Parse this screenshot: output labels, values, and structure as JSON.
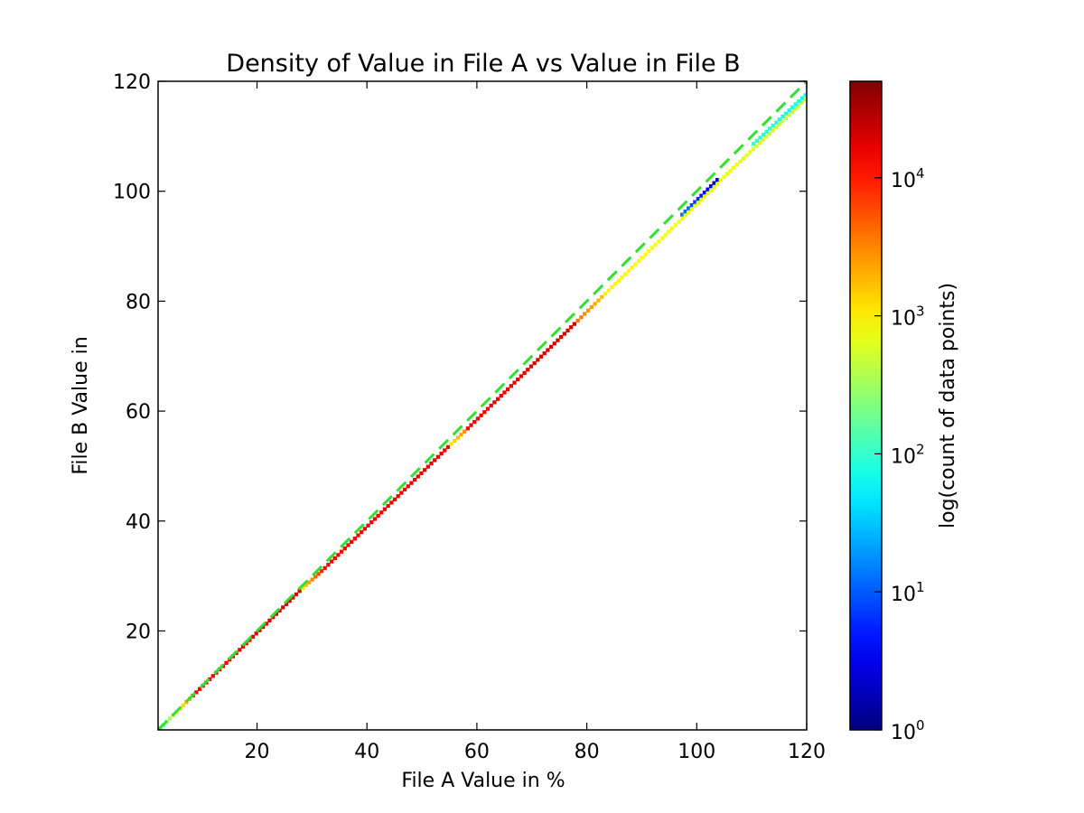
{
  "chart_data": {
    "type": "heatmap",
    "title": "Density of Value in File A vs Value in File B",
    "xlabel": "File A Value in %",
    "ylabel": "File B Value in",
    "xlim": [
      2,
      120
    ],
    "ylim": [
      2,
      120
    ],
    "xticks": [
      20,
      40,
      60,
      80,
      100,
      120
    ],
    "yticks": [
      20,
      40,
      60,
      80,
      100,
      120
    ],
    "colorbar": {
      "label": "log(count of data points)",
      "scale": "log",
      "range": [
        1,
        50000
      ],
      "ticks": [
        {
          "value": 1,
          "base": "10",
          "exp": "0"
        },
        {
          "value": 10,
          "base": "10",
          "exp": "1"
        },
        {
          "value": 100,
          "base": "10",
          "exp": "2"
        },
        {
          "value": 1000,
          "base": "10",
          "exp": "3"
        },
        {
          "value": 10000,
          "base": "10",
          "exp": "4"
        }
      ],
      "colormap": "jet"
    },
    "reference_line": {
      "style": "dashed",
      "color": "#33dd33",
      "points": [
        [
          2,
          2
        ],
        [
          120,
          120
        ]
      ]
    },
    "density_band": {
      "bin_width": 0.6,
      "segments": [
        {
          "x": [
            2,
            8
          ],
          "offset": [
            0,
            0
          ],
          "log_count": [
            2.0,
            3.5
          ]
        },
        {
          "x": [
            8,
            28
          ],
          "offset": [
            0,
            -0.4
          ],
          "log_count": [
            4.1,
            4.3
          ]
        },
        {
          "x": [
            28,
            32
          ],
          "offset": [
            -0.4,
            -0.8
          ],
          "log_count": [
            3.0,
            4.0
          ]
        },
        {
          "x": [
            32,
            55
          ],
          "offset": [
            -0.8,
            -1.2
          ],
          "log_count": [
            4.1,
            4.2
          ]
        },
        {
          "x": [
            55,
            58
          ],
          "offset": [
            -1.2,
            -1.4
          ],
          "log_count": [
            3.0,
            3.5
          ]
        },
        {
          "x": [
            58,
            78
          ],
          "offset": [
            -1.4,
            -1.8
          ],
          "log_count": [
            4.1,
            4.3
          ]
        },
        {
          "x": [
            78,
            83
          ],
          "offset": [
            -1.8,
            -1.9
          ],
          "log_count": [
            3.6,
            3.2
          ]
        },
        {
          "x": [
            83,
            97
          ],
          "offset": [
            -1.9,
            -2.2
          ],
          "log_count": [
            3.0,
            2.9
          ]
        },
        {
          "x": [
            97,
            104
          ],
          "offset": [
            -1.5,
            -1.6
          ],
          "log_count": [
            1.2,
            0.3
          ]
        },
        {
          "x": [
            104,
            120
          ],
          "offset": [
            -2.2,
            -3.0
          ],
          "log_count": [
            2.9,
            2.6
          ]
        }
      ],
      "secondary_segments": [
        {
          "x": [
            97,
            104
          ],
          "offset": [
            -2.2,
            -2.4
          ],
          "log_count": [
            2.9,
            2.8
          ]
        },
        {
          "x": [
            110,
            120
          ],
          "offset": [
            -1.6,
            -2.2
          ],
          "log_count": [
            2.0,
            1.8
          ]
        }
      ]
    }
  }
}
